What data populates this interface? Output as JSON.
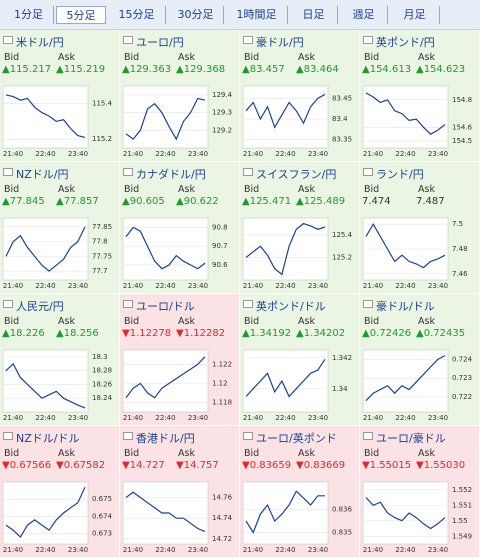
{
  "tabs": [
    "1分足",
    "5分足",
    "15分足",
    "30分足",
    "1時間足",
    "日足",
    "週足",
    "月足"
  ],
  "selected_tab": 1,
  "panels": [
    {
      "name": "米ドル/円",
      "direction": "up",
      "arrow": "▲",
      "bid_label": "Bid",
      "ask_label": "Ask",
      "bid": "115.217",
      "ask": "115.219",
      "chart": {
        "type": "line",
        "values": [
          115.45,
          115.44,
          115.42,
          115.43,
          115.38,
          115.35,
          115.33,
          115.3,
          115.31,
          115.26,
          115.22,
          115.21
        ],
        "ylim": [
          115.15,
          115.5
        ],
        "yticks": [
          115.4,
          115.2
        ],
        "xlabels": [
          "21:40",
          "22:40",
          "23:40"
        ]
      }
    },
    {
      "name": "ユーロ/円",
      "direction": "up",
      "arrow": "▲",
      "bid_label": "Bid",
      "ask_label": "Ask",
      "bid": "129.363",
      "ask": "129.368",
      "chart": {
        "type": "line",
        "values": [
          129.18,
          129.15,
          129.2,
          129.32,
          129.35,
          129.3,
          129.22,
          129.15,
          129.25,
          129.3,
          129.38,
          129.37
        ],
        "ylim": [
          129.1,
          129.45
        ],
        "yticks": [
          129.4,
          129.3,
          129.2
        ],
        "xlabels": [
          "21:40",
          "22:40",
          "23:40"
        ]
      }
    },
    {
      "name": "豪ドル/円",
      "direction": "up",
      "arrow": "▲",
      "bid_label": "Bid",
      "ask_label": "Ask",
      "bid": "83.457",
      "ask": "83.464",
      "chart": {
        "type": "line",
        "values": [
          83.42,
          83.44,
          83.4,
          83.43,
          83.38,
          83.41,
          83.44,
          83.42,
          83.39,
          83.43,
          83.45,
          83.46
        ],
        "ylim": [
          83.33,
          83.48
        ],
        "yticks": [
          83.45,
          83.4,
          83.35
        ],
        "xlabels": [
          "21:40",
          "22:40",
          "23:40"
        ]
      }
    },
    {
      "name": "英ポンド/円",
      "direction": "up",
      "arrow": "▲",
      "bid_label": "Bid",
      "ask_label": "Ask",
      "bid": "154.613",
      "ask": "154.623",
      "chart": {
        "type": "line",
        "values": [
          154.85,
          154.82,
          154.78,
          154.8,
          154.72,
          154.7,
          154.65,
          154.66,
          154.6,
          154.55,
          154.58,
          154.62
        ],
        "ylim": [
          154.45,
          154.9
        ],
        "yticks": [
          154.8,
          154.6,
          154.5
        ],
        "xlabels": [
          "21:40",
          "22:40",
          "23:40"
        ]
      }
    },
    {
      "name": "NZドル/円",
      "direction": "up",
      "arrow": "▲",
      "bid_label": "Bid",
      "ask_label": "Ask",
      "bid": "77.845",
      "ask": "77.857",
      "chart": {
        "type": "line",
        "values": [
          77.75,
          77.8,
          77.82,
          77.78,
          77.75,
          77.72,
          77.7,
          77.72,
          77.74,
          77.78,
          77.8,
          77.85
        ],
        "ylim": [
          77.67,
          77.88
        ],
        "yticks": [
          77.85,
          77.8,
          77.75,
          77.7
        ],
        "xlabels": [
          "21:40",
          "22:40",
          "23:40"
        ]
      }
    },
    {
      "name": "カナダドル/円",
      "direction": "up",
      "arrow": "▲",
      "bid_label": "Bid",
      "ask_label": "Ask",
      "bid": "90.605",
      "ask": "90.622",
      "chart": {
        "type": "line",
        "values": [
          90.75,
          90.8,
          90.78,
          90.7,
          90.62,
          90.58,
          90.6,
          90.65,
          90.62,
          90.6,
          90.58,
          90.61
        ],
        "ylim": [
          90.52,
          90.85
        ],
        "yticks": [
          90.8,
          90.7,
          90.6
        ],
        "xlabels": [
          "21:40",
          "22:40",
          "23:40"
        ]
      }
    },
    {
      "name": "スイスフラン/円",
      "direction": "up",
      "arrow": "▲",
      "bid_label": "Bid",
      "ask_label": "Ask",
      "bid": "125.471",
      "ask": "125.489",
      "chart": {
        "type": "line",
        "values": [
          125.2,
          125.25,
          125.3,
          125.22,
          125.1,
          125.05,
          125.3,
          125.45,
          125.5,
          125.48,
          125.45,
          125.47
        ],
        "ylim": [
          125.0,
          125.55
        ],
        "yticks": [
          125.4,
          125.2
        ],
        "xlabels": [
          "21:40",
          "22:40",
          "23:40"
        ]
      }
    },
    {
      "name": "ランド/円",
      "direction": "none",
      "arrow": "",
      "bid_label": "Bid",
      "ask_label": "Ask",
      "bid": "7.474",
      "ask": "7.487",
      "chart": {
        "type": "line",
        "values": [
          7.49,
          7.5,
          7.49,
          7.48,
          7.47,
          7.475,
          7.47,
          7.468,
          7.465,
          7.47,
          7.472,
          7.475
        ],
        "ylim": [
          7.455,
          7.505
        ],
        "yticks": [
          7.5,
          7.48,
          7.46
        ],
        "xlabels": [
          "21:40",
          "22:40",
          "23:40"
        ]
      }
    },
    {
      "name": "人民元/円",
      "direction": "up",
      "arrow": "▲",
      "bid_label": "Bid",
      "ask_label": "Ask",
      "bid": "18.226",
      "ask": "18.256",
      "chart": {
        "type": "line",
        "values": [
          18.28,
          18.29,
          18.27,
          18.26,
          18.25,
          18.24,
          18.245,
          18.25,
          18.24,
          18.235,
          18.23,
          18.226
        ],
        "ylim": [
          18.22,
          18.31
        ],
        "yticks": [
          18.3,
          18.28,
          18.26,
          18.24
        ],
        "xlabels": [
          "21:40",
          "22:40",
          "23:40"
        ]
      }
    },
    {
      "name": "ユーロ/ドル",
      "direction": "down",
      "arrow": "▼",
      "bid_label": "Bid",
      "ask_label": "Ask",
      "bid": "1.12278",
      "ask": "1.12282",
      "chart": {
        "type": "line",
        "values": [
          1.1185,
          1.1195,
          1.12,
          1.119,
          1.1185,
          1.1195,
          1.12,
          1.1205,
          1.121,
          1.1215,
          1.122,
          1.1228
        ],
        "ylim": [
          1.117,
          1.1235
        ],
        "yticks": [
          1.122,
          1.12,
          1.118
        ],
        "xlabels": [
          "21:40",
          "22:40",
          "23:40"
        ]
      }
    },
    {
      "name": "英ポンド/ドル",
      "direction": "up",
      "arrow": "▲",
      "bid_label": "Bid",
      "ask_label": "Ask",
      "bid": "1.34192",
      "ask": "1.34202",
      "chart": {
        "type": "line",
        "values": [
          1.3395,
          1.34,
          1.3405,
          1.341,
          1.3398,
          1.3405,
          1.3395,
          1.34,
          1.3405,
          1.341,
          1.3412,
          1.3419
        ],
        "ylim": [
          1.3385,
          1.3425
        ],
        "yticks": [
          1.342,
          1.34
        ],
        "xlabels": [
          "21:40",
          "22:40",
          "23:40"
        ]
      }
    },
    {
      "name": "豪ドル/ドル",
      "direction": "up",
      "arrow": "▲",
      "bid_label": "Bid",
      "ask_label": "Ask",
      "bid": "0.72426",
      "ask": "0.72435",
      "chart": {
        "type": "line",
        "values": [
          0.7218,
          0.7222,
          0.7224,
          0.7226,
          0.7222,
          0.7226,
          0.7224,
          0.7228,
          0.7232,
          0.7236,
          0.724,
          0.7242
        ],
        "ylim": [
          0.7212,
          0.7245
        ],
        "yticks": [
          0.724,
          0.723,
          0.722
        ],
        "xlabels": [
          "21:40",
          "22:40",
          "23:40"
        ]
      }
    },
    {
      "name": "NZドル/ドル",
      "direction": "down",
      "arrow": "▼",
      "bid_label": "Bid",
      "ask_label": "Ask",
      "bid": "0.67566",
      "ask": "0.67582",
      "chart": {
        "type": "line",
        "values": [
          0.6735,
          0.6732,
          0.6728,
          0.6735,
          0.6738,
          0.6735,
          0.6732,
          0.6738,
          0.6742,
          0.6745,
          0.6748,
          0.6757
        ],
        "ylim": [
          0.6724,
          0.676
        ],
        "yticks": [
          0.675,
          0.674,
          0.673
        ],
        "xlabels": [
          "21:40",
          "22:40",
          "23:40"
        ]
      }
    },
    {
      "name": "香港ドル/円",
      "direction": "down",
      "arrow": "▼",
      "bid_label": "Bid",
      "ask_label": "Ask",
      "bid": "14.727",
      "ask": "14.757",
      "chart": {
        "type": "line",
        "values": [
          14.76,
          14.765,
          14.76,
          14.755,
          14.75,
          14.745,
          14.745,
          14.74,
          14.74,
          14.735,
          14.73,
          14.727
        ],
        "ylim": [
          14.715,
          14.775
        ],
        "yticks": [
          14.76,
          14.74,
          14.72
        ],
        "xlabels": [
          "21:40",
          "22:40",
          "23:40"
        ]
      }
    },
    {
      "name": "ユーロ/英ポンド",
      "direction": "down",
      "arrow": "▼",
      "bid_label": "Bid",
      "ask_label": "Ask",
      "bid": "0.83659",
      "ask": "0.83669",
      "chart": {
        "type": "line",
        "values": [
          0.8355,
          0.835,
          0.8358,
          0.8362,
          0.8355,
          0.8358,
          0.8362,
          0.8368,
          0.8365,
          0.8362,
          0.8366,
          0.8366
        ],
        "ylim": [
          0.8345,
          0.8372
        ],
        "yticks": [
          0.836,
          0.835
        ],
        "xlabels": [
          "21:40",
          "22:40",
          "23:40"
        ]
      }
    },
    {
      "name": "ユーロ/豪ドル",
      "direction": "down",
      "arrow": "▼",
      "bid_label": "Bid",
      "ask_label": "Ask",
      "bid": "1.55015",
      "ask": "1.55030",
      "chart": {
        "type": "line",
        "values": [
          1.5515,
          1.551,
          1.5512,
          1.5505,
          1.5502,
          1.55,
          1.5505,
          1.5502,
          1.5498,
          1.5495,
          1.5498,
          1.5502
        ],
        "ylim": [
          1.5485,
          1.5525
        ],
        "yticks": [
          1.552,
          1.551,
          1.55,
          1.549
        ],
        "xlabels": [
          "21:40",
          "22:40",
          "23:40"
        ]
      }
    }
  ]
}
